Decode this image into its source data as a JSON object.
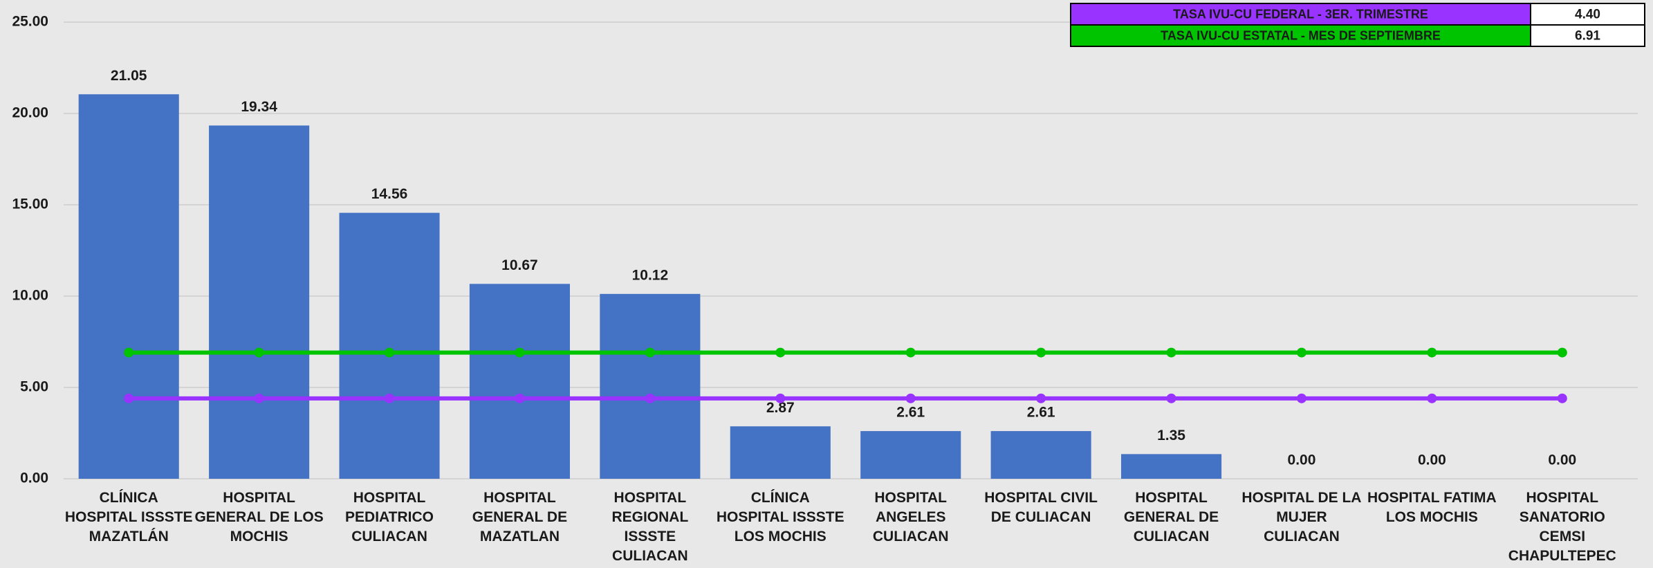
{
  "chart_data": {
    "type": "bar",
    "categories": [
      "CLÍNICA HOSPITAL ISSSTE MAZATLÁN",
      "HOSPITAL GENERAL DE LOS MOCHIS",
      "HOSPITAL PEDIATRICO CULIACAN",
      "HOSPITAL GENERAL DE MAZATLAN",
      "HOSPITAL REGIONAL ISSSTE CULIACAN",
      "CLÍNICA HOSPITAL ISSSTE LOS MOCHIS",
      "HOSPITAL ANGELES CULIACAN",
      "HOSPITAL CIVIL DE CULIACAN",
      "HOSPITAL GENERAL DE CULIACAN",
      "HOSPITAL DE LA MUJER CULIACAN",
      "HOSPITAL FATIMA LOS MOCHIS",
      "HOSPITAL SANATORIO CEMSI CHAPULTEPEC"
    ],
    "values": [
      21.05,
      19.34,
      14.56,
      10.67,
      10.12,
      2.87,
      2.61,
      2.61,
      1.35,
      0,
      0,
      0
    ],
    "value_labels": [
      "21.05",
      "19.34",
      "14.56",
      "10.67",
      "10.12",
      "2.87",
      "2.61",
      "2.61",
      "1.35",
      "0.00",
      "0.00",
      "0.00"
    ],
    "color": "#4472c4",
    "series": [
      {
        "name": "TASA IVU-CU FEDERAL -  3ER. TRIMESTRE",
        "legend_value": "4.40",
        "color": "#9933ff",
        "values": [
          4.4,
          4.4,
          4.4,
          4.4,
          4.4,
          4.4,
          4.4,
          4.4,
          4.4,
          4.4,
          4.4,
          4.4
        ]
      },
      {
        "name": "TASA IVU-CU ESTATAL - MES DE SEPTIEMBRE",
        "legend_value": "6.91",
        "color": "#00c400",
        "values": [
          6.91,
          6.91,
          6.91,
          6.91,
          6.91,
          6.91,
          6.91,
          6.91,
          6.91,
          6.91,
          6.91,
          6.91
        ]
      }
    ],
    "ylim": [
      0,
      25
    ],
    "yticks": [
      {
        "value": 0,
        "label": "0.00"
      },
      {
        "value": 5,
        "label": "5.00"
      },
      {
        "value": 10,
        "label": "10.00"
      },
      {
        "value": 15,
        "label": "15.00"
      },
      {
        "value": 20,
        "label": "20.00"
      },
      {
        "value": 25,
        "label": "25.00"
      }
    ],
    "grid": true
  }
}
